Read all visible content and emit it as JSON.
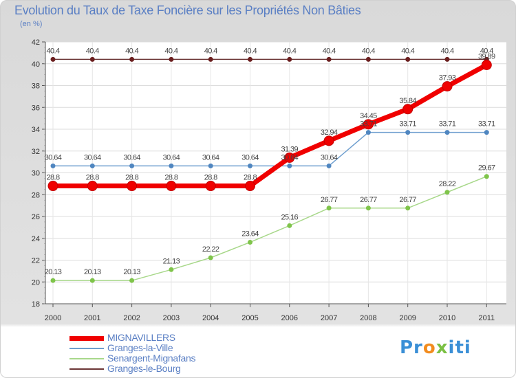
{
  "title": "Evolution du Taux de Taxe Foncière sur les Propriétés Non Bâties",
  "subtitle": "(en %)",
  "logo": {
    "p1": "Pr",
    "o": "o",
    "x": "x",
    "p2": "iti"
  },
  "chart_data": {
    "type": "line",
    "categories": [
      "2000",
      "2001",
      "2002",
      "2003",
      "2004",
      "2005",
      "2006",
      "2007",
      "2008",
      "2009",
      "2010",
      "2011"
    ],
    "ylim": [
      18,
      42
    ],
    "yticks": [
      18,
      20,
      22,
      24,
      26,
      28,
      30,
      32,
      34,
      36,
      38,
      40,
      42
    ],
    "series": [
      {
        "name": "Granges-le-Bourg",
        "color": "#6b3535",
        "width": 1.5,
        "marker": 3.5,
        "values": [
          40.4,
          40.4,
          40.4,
          40.4,
          40.4,
          40.4,
          40.4,
          40.4,
          40.4,
          40.4,
          40.4,
          40.4
        ],
        "labels": [
          "40.4",
          "40.4",
          "40.4",
          "40.4",
          "40.4",
          "40.4",
          "40.4",
          "40.4",
          "40.4",
          "40.4",
          "40.4",
          "40.4"
        ]
      },
      {
        "name": "Granges-la-Ville",
        "color": "#6f9fcf",
        "width": 1.5,
        "marker": 3.5,
        "values": [
          30.64,
          30.64,
          30.64,
          30.64,
          30.64,
          30.64,
          30.64,
          30.64,
          33.71,
          33.71,
          33.71,
          33.71
        ],
        "labels": [
          "30.64",
          "30.64",
          "30.64",
          "30.64",
          "30.64",
          "30.64",
          "30.64",
          "30.64",
          "33.71",
          "33.71",
          "33.71",
          "33.71"
        ]
      },
      {
        "name": "Senargent-Mignafans",
        "color": "#a8d88a",
        "width": 1.5,
        "marker": 3.5,
        "values": [
          20.13,
          20.13,
          20.13,
          21.13,
          22.22,
          23.64,
          25.16,
          26.77,
          26.77,
          26.77,
          28.22,
          29.67
        ],
        "labels": [
          "20.13",
          "20.13",
          "20.13",
          "21.13",
          "22.22",
          "23.64",
          "25.16",
          "26.77",
          "26.77",
          "26.77",
          "28.22",
          "29.67"
        ]
      },
      {
        "name": "MIGNAVILLERS",
        "color": "#f00000",
        "width": 7,
        "marker": 7,
        "values": [
          28.8,
          28.8,
          28.8,
          28.8,
          28.8,
          28.8,
          31.39,
          32.94,
          34.45,
          35.84,
          37.93,
          39.89
        ],
        "labels": [
          "28.8",
          "28.8",
          "28.8",
          "28.8",
          "28.8",
          "28.8",
          "31.39",
          "32.94",
          "34.45",
          "35.84",
          "37.93",
          "39.89"
        ]
      }
    ]
  },
  "legend": [
    {
      "name": "MIGNAVILLERS",
      "color": "#f00000",
      "thickness": 7
    },
    {
      "name": "Granges-la-Ville",
      "color": "#6f9fcf",
      "thickness": 2
    },
    {
      "name": "Senargent-Mignafans",
      "color": "#a8d88a",
      "thickness": 2
    },
    {
      "name": "Granges-le-Bourg",
      "color": "#6b3535",
      "thickness": 2
    }
  ]
}
